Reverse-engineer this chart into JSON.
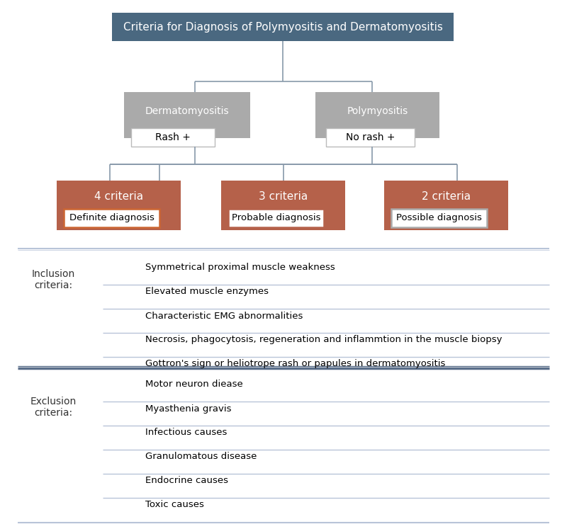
{
  "title": "Criteria for Diagnosis of Polymyositis and Dermatomyositis",
  "title_box_color": "#4a6880",
  "title_text_color": "#ffffff",
  "gray_box_color": "#aaaaaa",
  "brown_box_color": "#b5614a",
  "line_color": "#8899aa",
  "divider_light": "#b8c4d8",
  "divider_dark": "#5a6e8a",
  "text_color": "#222222",
  "label_color": "#333333",
  "derma_label": "Dermatomyositis",
  "poly_label": "Polymyositis",
  "rash_label": "Rash +",
  "norash_label": "No rash +",
  "criteria_labels": [
    "4 criteria",
    "3 criteria",
    "2 criteria"
  ],
  "diagnosis_labels": [
    "Definite diagnosis",
    "Probable diagnosis",
    "Possible diagnosis"
  ],
  "diagnosis_border_colors": [
    "#cc6633",
    "#b5614a",
    "#aaaaaa"
  ],
  "inclusion_header": "Inclusion\ncriteria:",
  "exclusion_header": "Exclusion\ncriteria:",
  "inclusion_items": [
    "Symmetrical proximal muscle weakness",
    "Elevated muscle enzymes",
    "Characteristic EMG abnormalities",
    "Necrosis, phagocytosis, regeneration and inflammtion in the muscle biopsy",
    "Gottron's sign or heliotrope rash or papules in dermatomyositis"
  ],
  "exclusion_items": [
    "Motor neuron diease",
    "Myasthenia gravis",
    "Infectious causes",
    "Granulomatous disease",
    "Endocrine causes",
    "Toxic causes"
  ]
}
